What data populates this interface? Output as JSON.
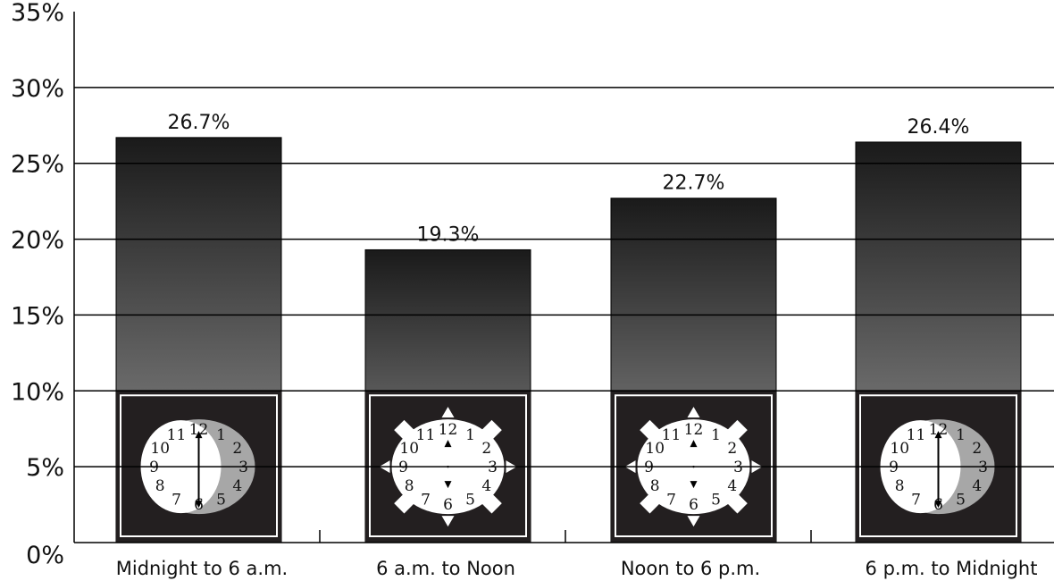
{
  "chart_data": {
    "type": "bar",
    "categories": [
      "Midnight to 6 a.m.",
      "6 a.m. to Noon",
      "Noon to 6 p.m.",
      "6 p.m. to Midnight"
    ],
    "values": [
      26.7,
      19.3,
      22.7,
      26.4
    ],
    "data_labels": [
      "26.7%",
      "19.3%",
      "22.7%",
      "26.4%"
    ],
    "yticks": [
      "0%",
      "5%",
      "10%",
      "15%",
      "20%",
      "25%",
      "30%",
      "35%"
    ],
    "ylim": [
      0,
      35
    ],
    "grid": true,
    "legend": "none",
    "clock_icons": [
      "night-clock-icon",
      "morning-clock-icon",
      "afternoon-clock-icon",
      "evening-clock-icon"
    ],
    "clock_numerals": [
      "12",
      "1",
      "2",
      "3",
      "4",
      "5",
      "6",
      "7",
      "8",
      "9",
      "10",
      "11"
    ],
    "colors": {
      "bar_top": "#1a1a1a",
      "bar_bottom": "#9a9a9a",
      "panel": "#231f20",
      "gridline": "#000000",
      "shade": "#a7a7a7"
    }
  }
}
